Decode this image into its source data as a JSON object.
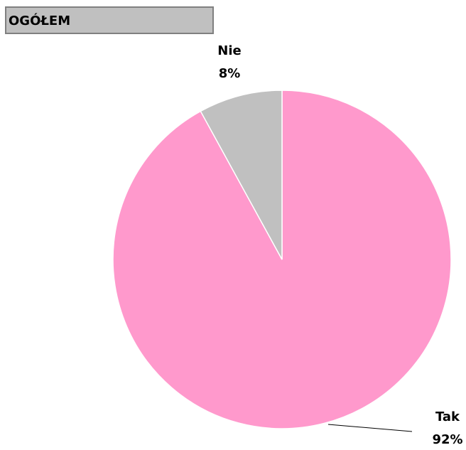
{
  "chart_data": {
    "type": "pie",
    "title": "OGÓŁEM",
    "categories": [
      "Tak",
      "Nie"
    ],
    "values": [
      92,
      8
    ],
    "value_labels": [
      "92%",
      "8%"
    ],
    "colors": [
      "#ff99cc",
      "#c0c0c0"
    ]
  }
}
